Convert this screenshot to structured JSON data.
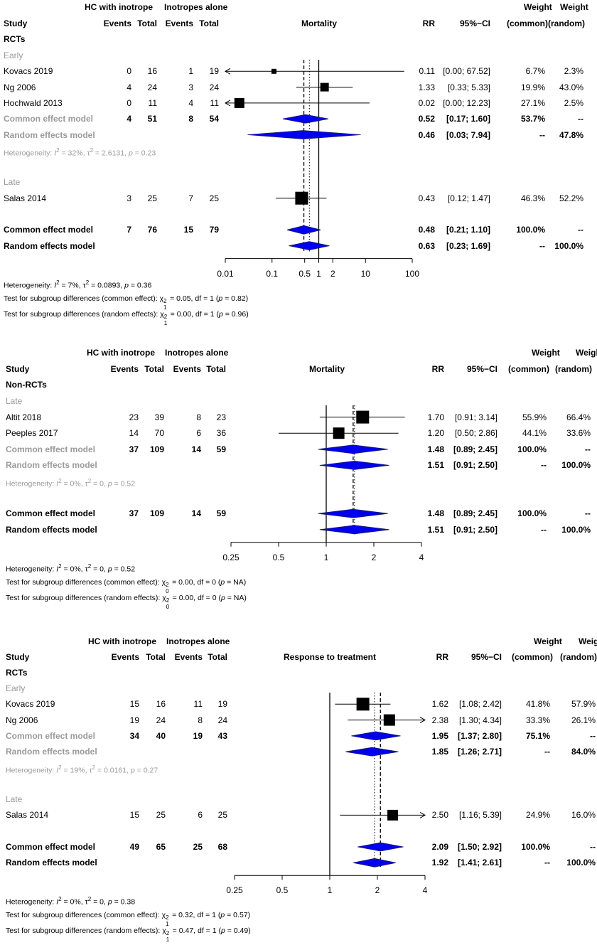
{
  "chart_data": [
    {
      "type": "forest",
      "title": "Mortality",
      "scale": "log",
      "ticks": [
        0.01,
        0.1,
        0.5,
        1,
        2,
        10,
        100
      ],
      "tick_labels": [
        "0.01",
        "0.1",
        "0.5",
        "1",
        "2",
        "10",
        "100"
      ],
      "xlim": [
        0.01,
        100
      ],
      "header": {
        "exp_group": "HC with inotrope",
        "ctrl_group": "Inotropes alone",
        "study": "Study",
        "events": "Events",
        "total": "Total",
        "events2": "Events",
        "total2": "Total",
        "rr": "RR",
        "ci": "95%−CI",
        "weight": "Weight",
        "weight2": "Weight",
        "common": "(common)",
        "random": "(random)",
        "group": "RCTs"
      },
      "common_overall": 0.48,
      "random_overall": 0.63,
      "rows": [
        {
          "kind": "subgroup",
          "label": "Early"
        },
        {
          "kind": "study",
          "label": "Kovacs 2019",
          "ev1": "0",
          "n1": "16",
          "ev2": "1",
          "n2": "19",
          "rr": 0.11,
          "lo": 0.0001,
          "hi": 67.52,
          "rr_text": "0.11",
          "ci_text": "[0.00; 67.52]",
          "wc": "6.7%",
          "wr": "2.3%",
          "box": 7,
          "arrow_left": true,
          "arrow_right": false
        },
        {
          "kind": "study",
          "label": "Ng 2006",
          "ev1": "4",
          "n1": "24",
          "ev2": "3",
          "n2": "24",
          "rr": 1.33,
          "lo": 0.33,
          "hi": 5.33,
          "rr_text": "1.33",
          "ci_text": "[0.33; 5.33]",
          "wc": "19.9%",
          "wr": "43.0%",
          "box": 12,
          "arrow_left": false,
          "arrow_right": false
        },
        {
          "kind": "study",
          "label": "Hochwald 2013",
          "ev1": "0",
          "n1": "11",
          "ev2": "4",
          "n2": "11",
          "rr": 0.02,
          "lo": 0.0001,
          "hi": 12.23,
          "rr_text": "0.02",
          "ci_text": "[0.00; 12.23]",
          "wc": "27.1%",
          "wr": "2.5%",
          "box": 14,
          "arrow_left": true,
          "arrow_right": false
        },
        {
          "kind": "pooled",
          "sub": true,
          "label": "Common effect model",
          "ev1": "4",
          "n1": "51",
          "ev2": "8",
          "n2": "54",
          "rr": 0.52,
          "lo": 0.17,
          "hi": 1.6,
          "rr_text": "0.52",
          "ci_text": "[0.17; 1.60]",
          "wc": "53.7%",
          "wr": "--"
        },
        {
          "kind": "pooled",
          "sub": true,
          "label": "Random effects model",
          "ev1": "",
          "n1": "",
          "ev2": "",
          "n2": "",
          "rr": 0.46,
          "lo": 0.03,
          "hi": 7.94,
          "rr_text": "0.46",
          "ci_text": "[0.03; 7.94]",
          "wc": "--",
          "wr": "47.8%"
        },
        {
          "kind": "hetero",
          "label": "Heterogeneity: I2 = 32%, τ2 = 2.6131, p = 0.23",
          "i2": "32%",
          "tau2": "2.6131",
          "p": "0.23"
        },
        {
          "kind": "blank"
        },
        {
          "kind": "subgroup",
          "label": "Late"
        },
        {
          "kind": "study",
          "label": "Salas 2014",
          "ev1": "3",
          "n1": "25",
          "ev2": "7",
          "n2": "25",
          "rr": 0.43,
          "lo": 0.12,
          "hi": 1.47,
          "rr_text": "0.43",
          "ci_text": "[0.12; 1.47]",
          "wc": "46.3%",
          "wr": "52.2%",
          "box": 18,
          "arrow_left": false,
          "arrow_right": false
        },
        {
          "kind": "blank"
        },
        {
          "kind": "pooled",
          "sub": false,
          "label": "Common effect model",
          "ev1": "7",
          "n1": "76",
          "ev2": "15",
          "n2": "79",
          "rr": 0.48,
          "lo": 0.21,
          "hi": 1.1,
          "rr_text": "0.48",
          "ci_text": "[0.21; 1.10]",
          "wc": "100.0%",
          "wr": "--"
        },
        {
          "kind": "pooled",
          "sub": false,
          "label": "Random effects model",
          "ev1": "",
          "n1": "",
          "ev2": "",
          "n2": "",
          "rr": 0.63,
          "lo": 0.23,
          "hi": 1.69,
          "rr_text": "0.63",
          "ci_text": "[0.23; 1.69]",
          "wc": "--",
          "wr": "100.0%"
        }
      ],
      "footer": [
        {
          "pre": "Heterogeneity: I2 = 7%, τ2 = 0.0893, p = 0.36",
          "i2": "7%",
          "tau2": "0.0893",
          "p": "0.36"
        },
        {
          "pre": "Test for subgroup differences (common effect):",
          "chi": "χ12 = 0.05",
          "df": "df = 1",
          "p": "0.82"
        },
        {
          "pre": "Test for subgroup differences (random effects):",
          "chi": "χ12 = 0.00",
          "df": "df = 1",
          "p": "0.96"
        }
      ]
    },
    {
      "type": "forest",
      "title": "Mortality",
      "scale": "log",
      "ticks": [
        0.25,
        0.5,
        1,
        2,
        4
      ],
      "tick_labels": [
        "0.25",
        "0.5",
        "1",
        "2",
        "4"
      ],
      "xlim": [
        0.25,
        4
      ],
      "header": {
        "exp_group": "HC with inotrope",
        "ctrl_group": "Inotropes alone",
        "study": "Study",
        "events": "Events",
        "total": "Total",
        "events2": "Events",
        "total2": "Total",
        "rr": "RR",
        "ci": "95%−CI",
        "weight": "Weight",
        "weight2": "Weight",
        "common": "(common)",
        "random": "(random)",
        "group": "Non-RCTs"
      },
      "common_overall": 1.48,
      "random_overall": 1.51,
      "rows": [
        {
          "kind": "subgroup",
          "label": "Late"
        },
        {
          "kind": "study",
          "label": "Altit 2018",
          "ev1": "23",
          "n1": "39",
          "ev2": "8",
          "n2": "23",
          "rr": 1.7,
          "lo": 0.91,
          "hi": 3.14,
          "rr_text": "1.70",
          "ci_text": "[0.91; 3.14]",
          "wc": "55.9%",
          "wr": "66.4%",
          "box": 18,
          "arrow_left": false,
          "arrow_right": false
        },
        {
          "kind": "study",
          "label": "Peeples 2017",
          "ev1": "14",
          "n1": "70",
          "ev2": "6",
          "n2": "36",
          "rr": 1.2,
          "lo": 0.5,
          "hi": 2.86,
          "rr_text": "1.20",
          "ci_text": "[0.50; 2.86]",
          "wc": "44.1%",
          "wr": "33.6%",
          "box": 16,
          "arrow_left": false,
          "arrow_right": false
        },
        {
          "kind": "pooled",
          "sub": true,
          "label": "Common effect model",
          "ev1": "37",
          "n1": "109",
          "ev2": "14",
          "n2": "59",
          "rr": 1.48,
          "lo": 0.89,
          "hi": 2.45,
          "rr_text": "1.48",
          "ci_text": "[0.89; 2.45]",
          "wc": "100.0%",
          "wr": "--"
        },
        {
          "kind": "pooled",
          "sub": true,
          "label": "Random effects model",
          "ev1": "",
          "n1": "",
          "ev2": "",
          "n2": "",
          "rr": 1.51,
          "lo": 0.91,
          "hi": 2.5,
          "rr_text": "1.51",
          "ci_text": "[0.91; 2.50]",
          "wc": "--",
          "wr": "100.0%"
        },
        {
          "kind": "hetero",
          "label": "Heterogeneity: I2 = 0%, τ2 = 0, p = 0.52",
          "i2": "0%",
          "tau2": "0",
          "p": "0.52"
        },
        {
          "kind": "blank"
        },
        {
          "kind": "pooled",
          "sub": false,
          "label": "Common effect model",
          "ev1": "37",
          "n1": "109",
          "ev2": "14",
          "n2": "59",
          "rr": 1.48,
          "lo": 0.89,
          "hi": 2.45,
          "rr_text": "1.48",
          "ci_text": "[0.89; 2.45]",
          "wc": "100.0%",
          "wr": "--"
        },
        {
          "kind": "pooled",
          "sub": false,
          "label": "Random effects model",
          "ev1": "",
          "n1": "",
          "ev2": "",
          "n2": "",
          "rr": 1.51,
          "lo": 0.91,
          "hi": 2.5,
          "rr_text": "1.51",
          "ci_text": "[0.91; 2.50]",
          "wc": "--",
          "wr": "100.0%"
        }
      ],
      "footer": [
        {
          "pre": "Heterogeneity: I2 = 0%, τ2 = 0, p = 0.52",
          "i2": "0%",
          "tau2": "0",
          "p": "0.52"
        },
        {
          "pre": "Test for subgroup differences (common effect):",
          "chi": "χ02 = 0.00",
          "df": "df = 0",
          "p": "NA"
        },
        {
          "pre": "Test for subgroup differences (random effects):",
          "chi": "χ02 = 0.00",
          "df": "df = 0",
          "p": "NA"
        }
      ]
    },
    {
      "type": "forest",
      "title": "Response to treatment",
      "scale": "log",
      "ticks": [
        0.25,
        0.5,
        1,
        2,
        4
      ],
      "tick_labels": [
        "0.25",
        "0.5",
        "1",
        "2",
        "4"
      ],
      "xlim": [
        0.25,
        4
      ],
      "header": {
        "exp_group": "HC with inotrope",
        "ctrl_group": "Inotropes alone",
        "study": "Study",
        "events": "Events",
        "total": "Total",
        "events2": "Events",
        "total2": "Total",
        "rr": "RR",
        "ci": "95%−CI",
        "weight": "Weight",
        "weight2": "Weight",
        "common": "(common)",
        "random": "(random)",
        "group": "RCTs"
      },
      "common_overall": 2.09,
      "random_overall": 1.92,
      "rows": [
        {
          "kind": "subgroup",
          "label": "Early"
        },
        {
          "kind": "study",
          "label": "Kovacs 2019",
          "ev1": "15",
          "n1": "16",
          "ev2": "11",
          "n2": "19",
          "rr": 1.62,
          "lo": 1.08,
          "hi": 2.42,
          "rr_text": "1.62",
          "ci_text": "[1.08; 2.42]",
          "wc": "41.8%",
          "wr": "57.9%",
          "box": 18,
          "arrow_left": false,
          "arrow_right": false
        },
        {
          "kind": "study",
          "label": "Ng 2006",
          "ev1": "19",
          "n1": "24",
          "ev2": "8",
          "n2": "24",
          "rr": 2.38,
          "lo": 1.3,
          "hi": 4.34,
          "rr_text": "2.38",
          "ci_text": "[1.30; 4.34]",
          "wc": "33.3%",
          "wr": "26.1%",
          "box": 16,
          "arrow_left": false,
          "arrow_right": true
        },
        {
          "kind": "pooled",
          "sub": true,
          "label": "Common effect model",
          "ev1": "34",
          "n1": "40",
          "ev2": "19",
          "n2": "43",
          "rr": 1.95,
          "lo": 1.37,
          "hi": 2.8,
          "rr_text": "1.95",
          "ci_text": "[1.37; 2.80]",
          "wc": "75.1%",
          "wr": "--"
        },
        {
          "kind": "pooled",
          "sub": true,
          "label": "Random effects model",
          "ev1": "",
          "n1": "",
          "ev2": "",
          "n2": "",
          "rr": 1.85,
          "lo": 1.26,
          "hi": 2.71,
          "rr_text": "1.85",
          "ci_text": "[1.26; 2.71]",
          "wc": "--",
          "wr": "84.0%"
        },
        {
          "kind": "hetero",
          "label": "Heterogeneity: I2 = 19%, τ2 = 0.0161, p = 0.27",
          "i2": "19%",
          "tau2": "0.0161",
          "p": "0.27"
        },
        {
          "kind": "blank"
        },
        {
          "kind": "subgroup",
          "label": "Late"
        },
        {
          "kind": "study",
          "label": "Salas 2014",
          "ev1": "15",
          "n1": "25",
          "ev2": "6",
          "n2": "25",
          "rr": 2.5,
          "lo": 1.16,
          "hi": 5.39,
          "rr_text": "2.50",
          "ci_text": "[1.16; 5.39]",
          "wc": "24.9%",
          "wr": "16.0%",
          "box": 15,
          "arrow_left": false,
          "arrow_right": true
        },
        {
          "kind": "blank"
        },
        {
          "kind": "pooled",
          "sub": false,
          "label": "Common effect model",
          "ev1": "49",
          "n1": "65",
          "ev2": "25",
          "n2": "68",
          "rr": 2.09,
          "lo": 1.5,
          "hi": 2.92,
          "rr_text": "2.09",
          "ci_text": "[1.50; 2.92]",
          "wc": "100.0%",
          "wr": "--"
        },
        {
          "kind": "pooled",
          "sub": false,
          "label": "Random effects model",
          "ev1": "",
          "n1": "",
          "ev2": "",
          "n2": "",
          "rr": 1.92,
          "lo": 1.41,
          "hi": 2.61,
          "rr_text": "1.92",
          "ci_text": "[1.41; 2.61]",
          "wc": "--",
          "wr": "100.0%"
        }
      ],
      "footer": [
        {
          "pre": "Heterogeneity: I2 = 0%, τ2 = 0, p = 0.38",
          "i2": "0%",
          "tau2": "0",
          "p": "0.38"
        },
        {
          "pre": "Test for subgroup differences (common effect):",
          "chi": "χ12 = 0.32",
          "df": "df = 1",
          "p": "0.57"
        },
        {
          "pre": "Test for subgroup differences (random effects):",
          "chi": "χ12 = 0.47",
          "df": "df = 1",
          "p": "0.49"
        }
      ]
    }
  ],
  "colors": {
    "diamond_fill": "#0000ee",
    "diamond_stroke": "#1a1a66",
    "box": "#000000",
    "grey_text": "#9a9a9a"
  }
}
